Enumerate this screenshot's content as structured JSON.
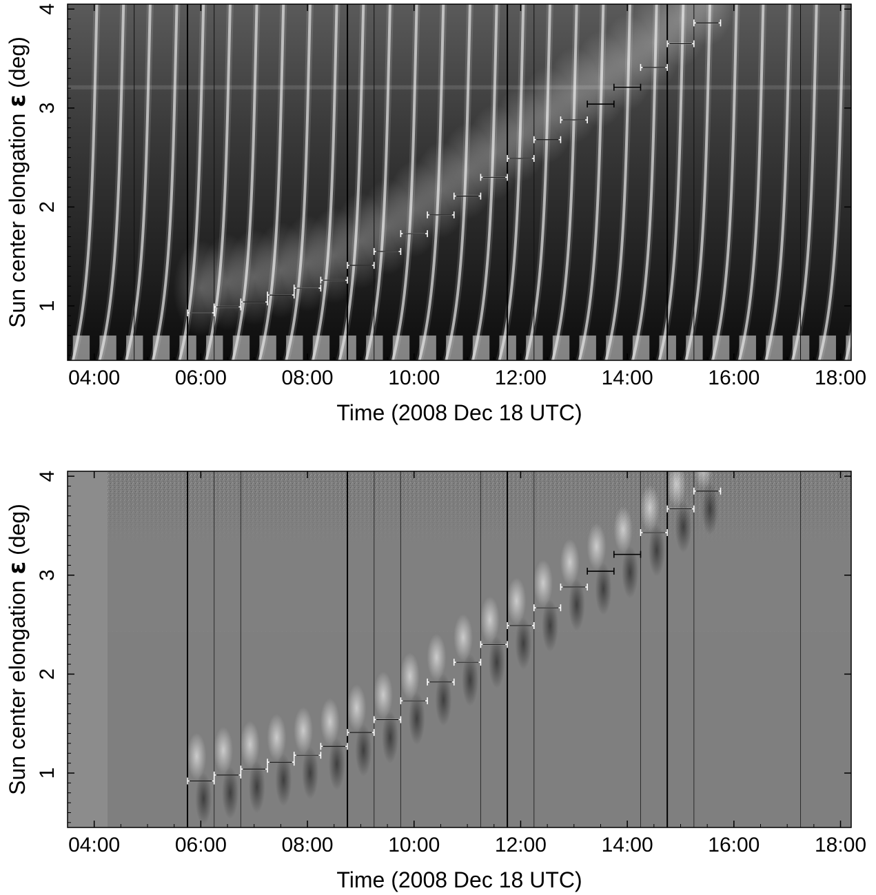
{
  "chart_data": [
    {
      "type": "heatmap",
      "panel": "top",
      "render": "running-mean-subtracted",
      "xlabel": "Time (2008 Dec 18 UTC)",
      "ylabel_prefix": "Sun center elongation",
      "ylabel_symbol": "ε",
      "ylabel_suffix": "(deg)",
      "x_range_hours": [
        3.5,
        18.2
      ],
      "y_range_deg": [
        0.45,
        4.05
      ],
      "x_ticks": [
        "04:00",
        "06:00",
        "08:00",
        "10:00",
        "12:00",
        "14:00",
        "16:00",
        "18:00"
      ],
      "y_ticks": [
        "1",
        "2",
        "3",
        "4"
      ],
      "bracket_track": [
        {
          "t_start": "05:45",
          "t_end": "06:15",
          "elong": 0.93
        },
        {
          "t_start": "06:15",
          "t_end": "06:45",
          "elong": 0.99
        },
        {
          "t_start": "06:45",
          "t_end": "07:15",
          "elong": 1.04
        },
        {
          "t_start": "07:15",
          "t_end": "07:45",
          "elong": 1.11
        },
        {
          "t_start": "07:45",
          "t_end": "08:15",
          "elong": 1.18
        },
        {
          "t_start": "08:15",
          "t_end": "08:45",
          "elong": 1.26
        },
        {
          "t_start": "08:45",
          "t_end": "09:15",
          "elong": 1.41
        },
        {
          "t_start": "09:15",
          "t_end": "09:45",
          "elong": 1.55
        },
        {
          "t_start": "09:45",
          "t_end": "10:15",
          "elong": 1.73
        },
        {
          "t_start": "10:15",
          "t_end": "10:45",
          "elong": 1.92
        },
        {
          "t_start": "10:45",
          "t_end": "11:15",
          "elong": 2.11
        },
        {
          "t_start": "11:15",
          "t_end": "11:45",
          "elong": 2.3
        },
        {
          "t_start": "11:45",
          "t_end": "12:15",
          "elong": 2.49
        },
        {
          "t_start": "12:15",
          "t_end": "12:45",
          "elong": 2.68
        },
        {
          "t_start": "12:45",
          "t_end": "13:15",
          "elong": 2.88
        },
        {
          "t_start": "13:15",
          "t_end": "13:45",
          "elong": 3.04
        },
        {
          "t_start": "13:45",
          "t_end": "14:15",
          "elong": 3.21
        },
        {
          "t_start": "14:15",
          "t_end": "14:45",
          "elong": 3.41
        },
        {
          "t_start": "14:45",
          "t_end": "15:15",
          "elong": 3.65
        },
        {
          "t_start": "15:15",
          "t_end": "15:45",
          "elong": 3.86
        }
      ]
    },
    {
      "type": "heatmap",
      "panel": "bottom",
      "render": "running-difference",
      "xlabel": "Time (2008 Dec 18 UTC)",
      "ylabel_prefix": "Sun center elongation",
      "ylabel_symbol": "ε",
      "ylabel_suffix": "(deg)",
      "x_range_hours": [
        3.5,
        18.2
      ],
      "y_range_deg": [
        0.45,
        4.05
      ],
      "x_ticks": [
        "04:00",
        "06:00",
        "08:00",
        "10:00",
        "12:00",
        "14:00",
        "16:00",
        "18:00"
      ],
      "y_ticks": [
        "1",
        "2",
        "3",
        "4"
      ],
      "bracket_track": [
        {
          "t_start": "05:45",
          "t_end": "06:15",
          "elong": 0.92
        },
        {
          "t_start": "06:15",
          "t_end": "06:45",
          "elong": 0.98
        },
        {
          "t_start": "06:45",
          "t_end": "07:15",
          "elong": 1.04
        },
        {
          "t_start": "07:15",
          "t_end": "07:45",
          "elong": 1.11
        },
        {
          "t_start": "07:45",
          "t_end": "08:15",
          "elong": 1.18
        },
        {
          "t_start": "08:15",
          "t_end": "08:45",
          "elong": 1.27
        },
        {
          "t_start": "08:45",
          "t_end": "09:15",
          "elong": 1.41
        },
        {
          "t_start": "09:15",
          "t_end": "09:45",
          "elong": 1.54
        },
        {
          "t_start": "09:45",
          "t_end": "10:15",
          "elong": 1.73
        },
        {
          "t_start": "10:15",
          "t_end": "10:45",
          "elong": 1.92
        },
        {
          "t_start": "10:45",
          "t_end": "11:15",
          "elong": 2.12
        },
        {
          "t_start": "11:15",
          "t_end": "11:45",
          "elong": 2.3
        },
        {
          "t_start": "11:45",
          "t_end": "12:15",
          "elong": 2.49
        },
        {
          "t_start": "12:15",
          "t_end": "12:45",
          "elong": 2.67
        },
        {
          "t_start": "12:45",
          "t_end": "13:15",
          "elong": 2.88
        },
        {
          "t_start": "13:15",
          "t_end": "13:45",
          "elong": 3.04
        },
        {
          "t_start": "13:45",
          "t_end": "14:15",
          "elong": 3.21
        },
        {
          "t_start": "14:15",
          "t_end": "14:45",
          "elong": 3.43
        },
        {
          "t_start": "14:45",
          "t_end": "15:15",
          "elong": 3.67
        },
        {
          "t_start": "15:15",
          "t_end": "15:45",
          "elong": 3.85
        }
      ]
    }
  ]
}
